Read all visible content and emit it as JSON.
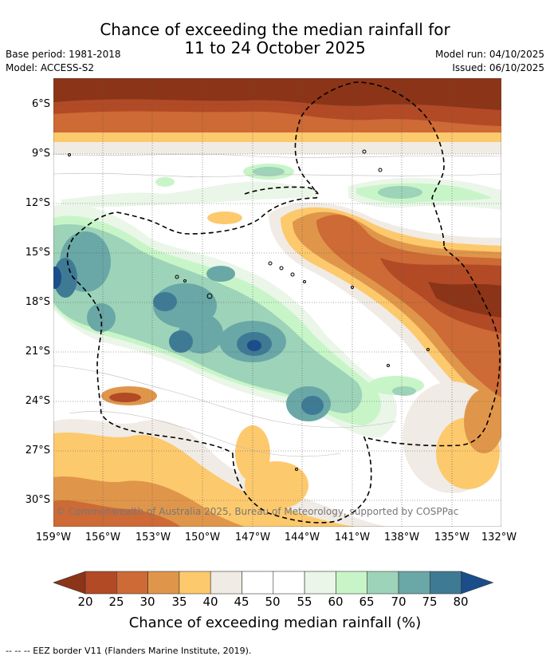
{
  "header": {
    "title_line1": "Chance of exceeding the median rainfall for",
    "title_line2": "11 to 24 October 2025",
    "base_period": "Base period: 1981-2018",
    "model": "Model: ACCESS-S2",
    "model_run": "Model run: 04/10/2025",
    "issued": "Issued: 06/10/2025"
  },
  "map": {
    "lat_labels": [
      "6°S",
      "9°S",
      "12°S",
      "15°S",
      "18°S",
      "21°S",
      "24°S",
      "27°S",
      "30°S"
    ],
    "lon_labels": [
      "159°W",
      "156°W",
      "153°W",
      "150°W",
      "147°W",
      "144°W",
      "141°W",
      "138°W",
      "135°W",
      "132°W"
    ],
    "copyright": "© Commonwealth of Australia 2025, Bureau of Meteorology, supported by COSPPac"
  },
  "colorbar": {
    "ticks": [
      "20",
      "25",
      "30",
      "35",
      "40",
      "45",
      "50",
      "55",
      "60",
      "65",
      "70",
      "75",
      "80"
    ],
    "title": "Chance of exceeding median rainfall (%)",
    "colors": [
      "#8b3418",
      "#b24a26",
      "#cd6a35",
      "#e0964a",
      "#fdc96d",
      "#f0ebe4",
      "#ffffff",
      "#ffffff",
      "#eaf6e8",
      "#c8f5c8",
      "#9dd3b8",
      "#6aa7a7",
      "#3f7a95",
      "#1a4d8a"
    ]
  },
  "footer": {
    "eez_note": "--  --  -- EEZ border V11 (Flanders Marine Institute, 2019)."
  }
}
